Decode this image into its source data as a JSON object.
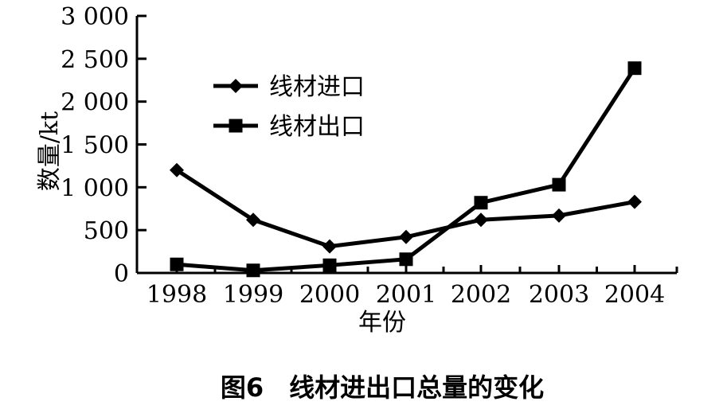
{
  "caption": "图6　线材进出口总量的变化",
  "chart_data": {
    "type": "line",
    "title": "",
    "xlabel": "年份",
    "ylabel": "数量/kt",
    "categories": [
      "1998",
      "1999",
      "2000",
      "2001",
      "2002",
      "2003",
      "2004"
    ],
    "ylim": [
      0,
      3000
    ],
    "yticks": [
      0,
      500,
      1000,
      1500,
      2000,
      2500,
      3000
    ],
    "ytick_labels": [
      "0",
      "500",
      "1 000",
      "1 500",
      "2 000",
      "2 500",
      "3 000"
    ],
    "grid": false,
    "legend_position": "top-left",
    "series": [
      {
        "name": "线材进口",
        "marker": "diamond",
        "color": "#000000",
        "values": [
          1200,
          620,
          310,
          420,
          620,
          670,
          830
        ]
      },
      {
        "name": "线材出口",
        "marker": "square",
        "color": "#000000",
        "values": [
          100,
          30,
          90,
          160,
          820,
          1030,
          2390
        ]
      }
    ]
  }
}
